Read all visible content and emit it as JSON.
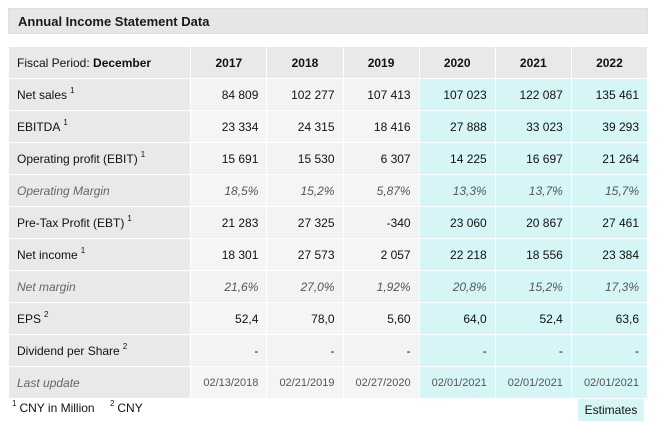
{
  "panel": {
    "title": "Annual Income Statement Data"
  },
  "header": {
    "label_prefix": "Fiscal Period: ",
    "label_bold": "December",
    "years": [
      "2017",
      "2018",
      "2019",
      "2020",
      "2021",
      "2022"
    ]
  },
  "rows": [
    {
      "label": "Net sales",
      "note": "1",
      "values": [
        "84 809",
        "102 277",
        "107 413",
        "107 023",
        "122 087",
        "135 461"
      ]
    },
    {
      "label": "EBITDA",
      "note": "1",
      "values": [
        "23 334",
        "24 315",
        "18 416",
        "27 888",
        "33 023",
        "39 293"
      ]
    },
    {
      "label": "Operating profit (EBIT)",
      "note": "1",
      "values": [
        "15 691",
        "15 530",
        "6 307",
        "14 225",
        "16 697",
        "21 264"
      ]
    },
    {
      "label": "Operating Margin",
      "note": "",
      "values": [
        "18,5%",
        "15,2%",
        "5,87%",
        "13,3%",
        "13,7%",
        "15,7%"
      ]
    },
    {
      "label": "Pre-Tax Profit (EBT)",
      "note": "1",
      "values": [
        "21 283",
        "27 325",
        "-340",
        "23 060",
        "20 867",
        "27 461"
      ]
    },
    {
      "label": "Net income",
      "note": "1",
      "values": [
        "18 301",
        "27 573",
        "2 057",
        "22 218",
        "18 556",
        "23 384"
      ]
    },
    {
      "label": "Net margin",
      "note": "",
      "values": [
        "21,6%",
        "27,0%",
        "1,92%",
        "20,8%",
        "15,2%",
        "17,3%"
      ]
    },
    {
      "label": "EPS",
      "note": "2",
      "values": [
        "52,4",
        "78,0",
        "5,60",
        "64,0",
        "52,4",
        "63,6"
      ]
    },
    {
      "label": "Dividend per Share",
      "note": "2",
      "values": [
        "-",
        "-",
        "-",
        "-",
        "-",
        "-"
      ]
    },
    {
      "label": "Last update",
      "note": "",
      "values": [
        "02/13/2018",
        "02/21/2019",
        "02/27/2020",
        "02/01/2021",
        "02/01/2021",
        "02/01/2021"
      ]
    }
  ],
  "footnotes": [
    {
      "mark": "1",
      "text": "CNY in Million"
    },
    {
      "mark": "2",
      "text": "CNY"
    }
  ],
  "estimates_button": "Estimates",
  "colors": {
    "estimate_bg": "#d6f5f7",
    "label_bg": "#e9e9e9",
    "actual_bg": "#f3f3f3"
  }
}
